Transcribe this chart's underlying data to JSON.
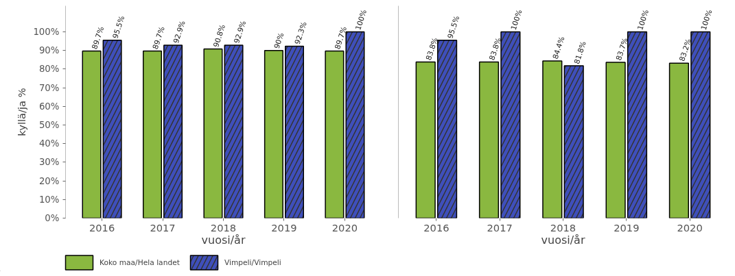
{
  "chart_data": [
    {
      "type": "bar",
      "categories": [
        "2016",
        "2017",
        "2018",
        "2019",
        "2020"
      ],
      "xlabel": "vuosi/år",
      "ylabel": "kyllä/ja %",
      "ylim": [
        0,
        114
      ],
      "yticks": [
        {
          "value": 0,
          "label": "0%"
        },
        {
          "value": 10,
          "label": "10%"
        },
        {
          "value": 20,
          "label": "20%"
        },
        {
          "value": 30,
          "label": "30%"
        },
        {
          "value": 40,
          "label": "40%"
        },
        {
          "value": 50,
          "label": "50%"
        },
        {
          "value": 60,
          "label": "60%"
        },
        {
          "value": 70,
          "label": "70%"
        },
        {
          "value": 80,
          "label": "80%"
        },
        {
          "value": 90,
          "label": "90%"
        },
        {
          "value": 100,
          "label": "100%"
        }
      ],
      "grid": false,
      "legend": "bottom",
      "series": [
        {
          "name": "Koko maa/Hela landet",
          "color": "#8ab840",
          "values": [
            89.7,
            89.7,
            90.8,
            90,
            89.7
          ],
          "value_labels": [
            "89.7%",
            "89.7%",
            "90.8%",
            "90%",
            "89.7%"
          ]
        },
        {
          "name": "Vimpeli/Vimpeli",
          "color": "#3f4fbb",
          "values": [
            95.5,
            92.9,
            92.9,
            92.3,
            100
          ],
          "value_labels": [
            "95.5%",
            "92.9%",
            "92.9%",
            "92.3%",
            "100%"
          ]
        }
      ]
    },
    {
      "type": "bar",
      "categories": [
        "2016",
        "2017",
        "2018",
        "2019",
        "2020"
      ],
      "xlabel": "vuosi/år",
      "ylim": [
        0,
        114
      ],
      "tick_labels": "x",
      "grid": false,
      "series": [
        {
          "color": "#8ab840",
          "values": [
            83.8,
            83.8,
            84.4,
            83.7,
            83.2
          ],
          "value_labels": [
            "83.8%",
            "83.8%",
            "84.4%",
            "83.7%",
            "83.2%"
          ]
        },
        {
          "color": "#3f4fbb",
          "values": [
            95.5,
            100,
            81.8,
            100,
            100
          ],
          "value_labels": [
            "95.5%",
            "100%",
            "81.8%",
            "100%",
            "100%"
          ]
        }
      ]
    }
  ]
}
